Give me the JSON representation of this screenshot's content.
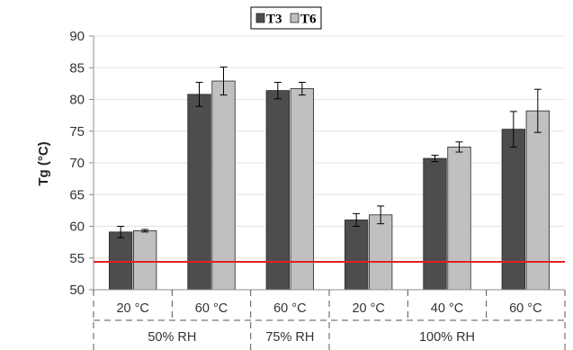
{
  "chart_data": {
    "type": "bar",
    "ylabel": "Tg (°C)",
    "ylim": [
      50,
      90
    ],
    "yticks": [
      50,
      55,
      60,
      65,
      70,
      75,
      80,
      85,
      90
    ],
    "grid": true,
    "legend_position": "top-center",
    "categories": [
      "20 °C",
      "60 °C",
      "60 °C",
      "20 °C",
      "40 °C",
      "60 °C"
    ],
    "groups": [
      {
        "label": "50% RH",
        "categories": 2
      },
      {
        "label": "75% RH",
        "categories": 1
      },
      {
        "label": "100% RH",
        "categories": 3
      }
    ],
    "series": [
      {
        "name": "T3",
        "color": "#4d4d4d",
        "values": [
          59.1,
          80.8,
          81.4,
          61.0,
          70.7,
          75.3
        ],
        "errors": [
          0.9,
          1.9,
          1.3,
          1.0,
          0.5,
          2.8
        ]
      },
      {
        "name": "T6",
        "color": "#c0c0c0",
        "values": [
          59.3,
          82.9,
          81.7,
          61.8,
          72.5,
          78.2
        ],
        "errors": [
          0.2,
          2.2,
          1.0,
          1.4,
          0.8,
          3.4
        ]
      }
    ],
    "reference_line": {
      "value": 54.4,
      "color": "#e0211f"
    }
  }
}
